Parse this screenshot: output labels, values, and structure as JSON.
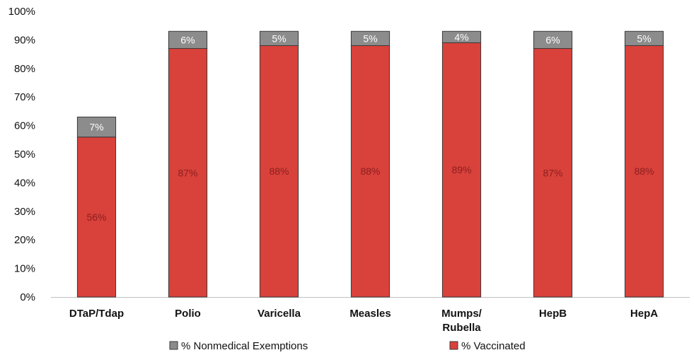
{
  "chart_data": {
    "type": "bar",
    "stacked": true,
    "categories": [
      "DTaP/Tdap",
      "Polio",
      "Varicella",
      "Measles",
      "Mumps/\nRubella",
      "HepB",
      "HepA"
    ],
    "series": [
      {
        "name": "% Vaccinated",
        "color": "#d9413b",
        "values": [
          56,
          87,
          88,
          88,
          89,
          87,
          88
        ],
        "labels": [
          "56%",
          "87%",
          "88%",
          "88%",
          "89%",
          "87%",
          "88%"
        ]
      },
      {
        "name": "% Nonmedical Exemptions",
        "color": "#8c8c8c",
        "values": [
          7,
          6,
          5,
          5,
          4,
          6,
          5
        ],
        "labels": [
          "7%",
          "6%",
          "5%",
          "5%",
          "4%",
          "6%",
          "5%"
        ]
      }
    ],
    "ylim": [
      0,
      100
    ],
    "yticks": [
      "0%",
      "10%",
      "20%",
      "30%",
      "40%",
      "50%",
      "60%",
      "70%",
      "80%",
      "90%",
      "100%"
    ],
    "legend": {
      "placement": "bottom",
      "entries": [
        "% Nonmedical Exemptions",
        "% Vaccinated"
      ]
    },
    "grid": false
  }
}
